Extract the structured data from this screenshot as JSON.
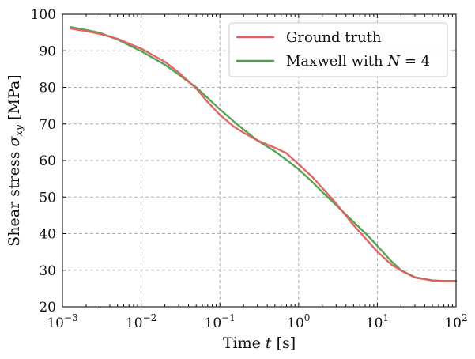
{
  "chart_data": {
    "type": "line",
    "x_scale": "log",
    "xlim": [
      0.001,
      100
    ],
    "ylim": [
      20,
      100
    ],
    "xlabel": "Time t [s]",
    "ylabel": "Shear stress σxy [MPa]",
    "x_ticks": [
      0.001,
      0.01,
      0.1,
      1,
      10,
      100
    ],
    "x_tick_labels": [
      {
        "base": "10",
        "exp": "−3"
      },
      {
        "base": "10",
        "exp": "−2"
      },
      {
        "base": "10",
        "exp": "−1"
      },
      {
        "base": "10",
        "exp": "0"
      },
      {
        "base": "10",
        "exp": "1"
      },
      {
        "base": "10",
        "exp": "2"
      }
    ],
    "y_ticks": [
      20,
      30,
      40,
      50,
      60,
      70,
      80,
      90,
      100
    ],
    "y_tick_labels": [
      "20",
      "30",
      "40",
      "50",
      "60",
      "70",
      "80",
      "90",
      "100"
    ],
    "grid": true,
    "legend_position": "top-right",
    "series": [
      {
        "name": "Ground truth",
        "color": "#e06060",
        "x": [
          0.00126,
          0.002,
          0.003,
          0.005,
          0.01,
          0.02,
          0.03,
          0.05,
          0.07,
          0.1,
          0.15,
          0.2,
          0.3,
          0.5,
          0.7,
          1,
          1.5,
          2,
          3,
          5,
          7,
          10,
          15,
          20,
          30,
          50,
          70,
          100
        ],
        "y": [
          96.1,
          95.4,
          94.6,
          93.3,
          90.6,
          87.0,
          84.1,
          79.7,
          76.0,
          72.5,
          69.3,
          67.6,
          65.5,
          63.5,
          62.0,
          59.0,
          55.5,
          52.5,
          48.3,
          42.3,
          38.8,
          35.1,
          31.6,
          29.9,
          28.0,
          27.2,
          27.0,
          27.0
        ]
      },
      {
        "name": "Maxwell with N = 4",
        "color": "#4f9e4f",
        "x": [
          0.00126,
          0.002,
          0.003,
          0.005,
          0.01,
          0.02,
          0.03,
          0.05,
          0.07,
          0.1,
          0.15,
          0.2,
          0.3,
          0.5,
          0.7,
          1,
          1.5,
          2,
          3,
          5,
          7,
          10,
          15,
          20,
          30,
          50,
          70,
          100
        ],
        "y": [
          96.5,
          95.7,
          94.9,
          93.1,
          89.9,
          86.2,
          83.5,
          80.0,
          77.1,
          74.0,
          70.7,
          68.5,
          65.5,
          62.5,
          60.2,
          57.6,
          54.1,
          51.4,
          47.8,
          43.2,
          40.2,
          36.7,
          32.5,
          30.0,
          28.1,
          27.2,
          27.1,
          27.1
        ]
      }
    ]
  },
  "legend_math": {
    "maxwell_prefix": "Maxwell with",
    "maxwell_var": "N",
    "maxwell_eq": " = 4"
  },
  "axis_label_parts": {
    "x_prefix": "Time ",
    "x_var": "t",
    "x_suffix": " [s]",
    "y_prefix": "Shear stress ",
    "y_var": "σ",
    "y_sub": "xy",
    "y_suffix": " [MPa]"
  }
}
